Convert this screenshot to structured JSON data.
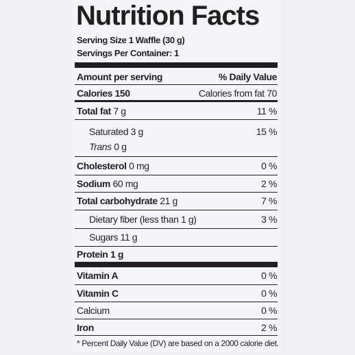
{
  "header": {
    "title": "Nutrition Facts",
    "serving_size": "Serving Size 1 Waffle (30 g)",
    "servings_per_container": "Servings Per Container: 1"
  },
  "amount_header": {
    "left": "Amount per serving",
    "right": "% Daily Value"
  },
  "calories": {
    "label": "Calories 150",
    "from_fat": "Calories from fat 70"
  },
  "nutrients": [
    {
      "name": "Total fat",
      "amount": "7 g",
      "daily_value": "11 %"
    },
    {
      "name": "Saturated",
      "amount": "3 g",
      "daily_value": "15 %"
    },
    {
      "name": "Trans",
      "amount": "0 g"
    },
    {
      "name": "Cholesterol",
      "amount": "0 mg",
      "daily_value": "0 %"
    },
    {
      "name": "Sodium",
      "amount": "60 mg",
      "daily_value": "2 %"
    },
    {
      "name": "Total carbohydrate",
      "amount": "21 g",
      "daily_value": "7 %"
    },
    {
      "name": "Dietary fiber (less than 1 g)",
      "daily_value": "3 %"
    },
    {
      "name": "Sugars",
      "amount": "11 g"
    },
    {
      "name": "Protein",
      "amount": "1 g"
    }
  ],
  "vitamins": [
    {
      "name": "Vitamin A",
      "daily_value": "0 %"
    },
    {
      "name": "Vitamin C",
      "daily_value": "0 %"
    },
    {
      "name": "Calcium",
      "daily_value": "0 %"
    },
    {
      "name": "Iron",
      "daily_value": "2 %"
    }
  ],
  "footnote": "* Percent Daily Value (DV) are based on a 2000 calorie diet."
}
